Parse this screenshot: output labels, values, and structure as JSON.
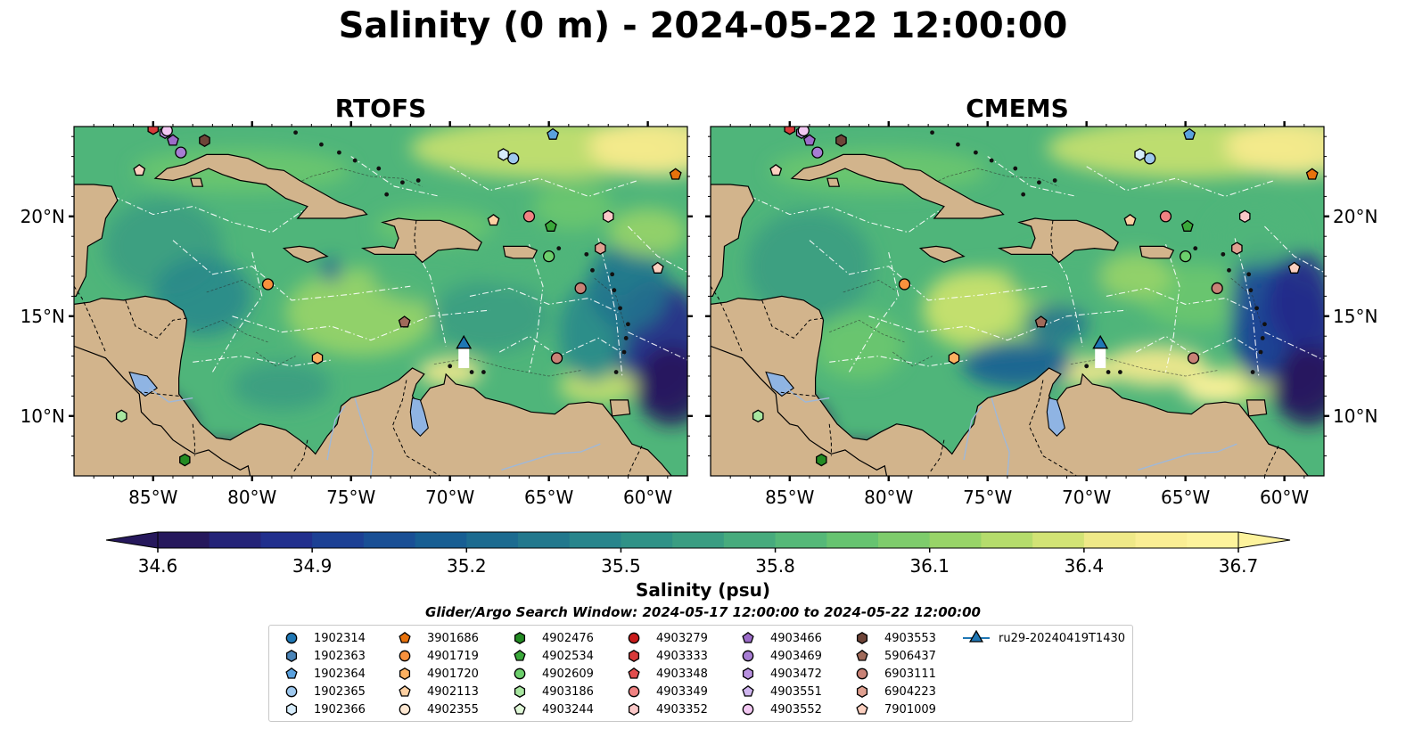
{
  "title": "Salinity (0 m) - 2024-05-22 12:00:00",
  "colors": {
    "land": "#d2b48c",
    "lake": "#8fb4e3",
    "river": "#9fb8d8",
    "colormap": [
      "#26185c",
      "#222a8b",
      "#1b4596",
      "#175e93",
      "#20738e",
      "#2a8a8b",
      "#3a9d82",
      "#4fb57a",
      "#6cc66e",
      "#98d468",
      "#c9e16f",
      "#f8eb8e",
      "#fdf39c"
    ]
  },
  "panels": [
    {
      "title": "RTOFS",
      "model": "rtofs"
    },
    {
      "title": "CMEMS",
      "model": "cmems"
    }
  ],
  "chart_data": {
    "type": "heatmap",
    "variable": "Salinity",
    "depth": "0 m",
    "time": "2024-05-22 12:00:00",
    "xlim": [
      -89,
      -58
    ],
    "ylim": [
      7,
      24.5
    ],
    "x_ticks": [
      -85,
      -80,
      -75,
      -70,
      -65,
      -60
    ],
    "x_tick_labels": [
      "85°W",
      "80°W",
      "75°W",
      "70°W",
      "65°W",
      "60°W"
    ],
    "y_ticks": [
      10,
      15,
      20
    ],
    "y_tick_labels": [
      "10°N",
      "15°N",
      "20°N"
    ],
    "colorbar": {
      "label": "Salinity (psu)",
      "min": 34.6,
      "max": 36.7,
      "extend": "both",
      "ticks": [
        34.6,
        34.9,
        35.2,
        35.5,
        35.8,
        36.1,
        36.4,
        36.7
      ],
      "tick_labels": [
        "34.6",
        "34.9",
        "35.2",
        "35.5",
        "35.8",
        "36.1",
        "36.4",
        "36.7"
      ]
    },
    "search_window": "Glider/Argo Search Window: 2024-05-17 12:00:00 to 2024-05-22 12:00:00",
    "floats": [
      {
        "name": "1902314",
        "color": "#1f77b4",
        "marker": "circle",
        "lon": null,
        "lat": null
      },
      {
        "name": "1902363",
        "color": "#4a84b8",
        "marker": "hexagon",
        "lon": null,
        "lat": null
      },
      {
        "name": "1902364",
        "color": "#5aa1de",
        "marker": "pentagon",
        "lon": -64.8,
        "lat": 24.1
      },
      {
        "name": "1902365",
        "color": "#9ec8ee",
        "marker": "circle",
        "lon": -66.8,
        "lat": 22.9
      },
      {
        "name": "1902366",
        "color": "#d6ecfb",
        "marker": "hexagon",
        "lon": -67.3,
        "lat": 23.1
      },
      {
        "name": "3901686",
        "color": "#e8720c",
        "marker": "pentagon",
        "lon": -58.6,
        "lat": 22.1
      },
      {
        "name": "4901719",
        "color": "#f7913d",
        "marker": "circle",
        "lon": -79.2,
        "lat": 16.6
      },
      {
        "name": "4901720",
        "color": "#fbb060",
        "marker": "hexagon",
        "lon": -76.7,
        "lat": 12.9
      },
      {
        "name": "4902113",
        "color": "#fdd0a2",
        "marker": "pentagon",
        "lon": -67.8,
        "lat": 19.8
      },
      {
        "name": "4902355",
        "color": "#fee8d2",
        "marker": "circle",
        "lon": null,
        "lat": null
      },
      {
        "name": "4902476",
        "color": "#238b23",
        "marker": "hexagon",
        "lon": -83.4,
        "lat": 7.8
      },
      {
        "name": "4902534",
        "color": "#3aa83a",
        "marker": "pentagon",
        "lon": -64.9,
        "lat": 19.5
      },
      {
        "name": "4902609",
        "color": "#6ccf6c",
        "marker": "circle",
        "lon": -65.0,
        "lat": 18.0
      },
      {
        "name": "4903186",
        "color": "#a8e6a0",
        "marker": "hexagon",
        "lon": -86.6,
        "lat": 10.0
      },
      {
        "name": "4903244",
        "color": "#e0f8d8",
        "marker": "pentagon",
        "lon": null,
        "lat": null
      },
      {
        "name": "4903279",
        "color": "#c81a1a",
        "marker": "circle",
        "lon": null,
        "lat": null
      },
      {
        "name": "4903333",
        "color": "#d83a3a",
        "marker": "hexagon",
        "lon": -85.0,
        "lat": 24.4
      },
      {
        "name": "4903348",
        "color": "#e24d4d",
        "marker": "pentagon",
        "lon": null,
        "lat": null
      },
      {
        "name": "4903349",
        "color": "#f08282",
        "marker": "circle",
        "lon": -66.0,
        "lat": 20.0
      },
      {
        "name": "4903352",
        "color": "#fbc8c8",
        "marker": "hexagon",
        "lon": -62.0,
        "lat": 20.0
      },
      {
        "name": "4903466",
        "color": "#9c6cc9",
        "marker": "pentagon",
        "lon": -84.0,
        "lat": 23.8
      },
      {
        "name": "4903469",
        "color": "#a77dd3",
        "marker": "circle",
        "lon": -83.6,
        "lat": 23.2
      },
      {
        "name": "4903472",
        "color": "#b891e0",
        "marker": "hexagon",
        "lon": -84.4,
        "lat": 24.2
      },
      {
        "name": "4903551",
        "color": "#cfb5ef",
        "marker": "pentagon",
        "lon": null,
        "lat": null
      },
      {
        "name": "4903552",
        "color": "#f2c8f2",
        "marker": "circle",
        "lon": -84.3,
        "lat": 24.3
      },
      {
        "name": "4903553",
        "color": "#6e4438",
        "marker": "hexagon",
        "lon": -82.4,
        "lat": 23.8
      },
      {
        "name": "5906437",
        "color": "#a06a5a",
        "marker": "pentagon",
        "lon": -72.3,
        "lat": 14.7
      },
      {
        "name": "6903111",
        "color": "#c98276",
        "marker": "circle",
        "lon": -63.4,
        "lat": 16.4
      },
      {
        "name": "6904223",
        "color": "#e0a090",
        "marker": "hexagon",
        "lon": -62.4,
        "lat": 18.4
      },
      {
        "name": "7901009",
        "color": "#fcd0c0",
        "marker": "pentagon",
        "lon": -85.7,
        "lat": 22.3
      },
      {
        "name": "ru29-20240419T1430",
        "color": "#1f77b4",
        "marker": "triangle",
        "lon": -69.3,
        "lat": 13.6
      }
    ],
    "float_markers_extra": [
      {
        "name": "6903111",
        "lon": -64.6,
        "lat": 12.9
      },
      {
        "name": "7901009",
        "lon": -59.5,
        "lat": 17.4
      }
    ]
  }
}
